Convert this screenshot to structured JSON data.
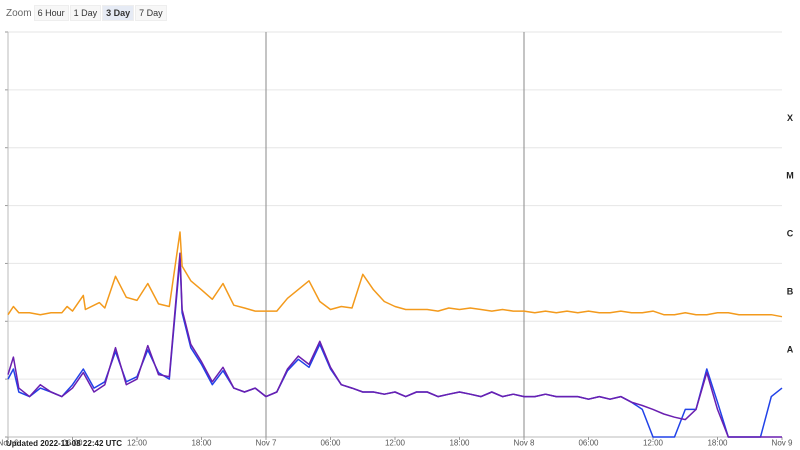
{
  "zoom": {
    "label": "Zoom",
    "buttons": [
      "6 Hour",
      "1 Day",
      "3 Day",
      "7 Day"
    ],
    "active": "3 Day"
  },
  "updated_text": "Updated 2022-11-08 22:42 UTC",
  "colors": {
    "series1": "#f39a1c",
    "series1_alt": "#e02020",
    "series2": "#6a1fb0",
    "series3": "#2142e8",
    "grid": "#e6e6e6",
    "day_line": "#8a8a8a"
  },
  "chart_data": {
    "type": "line",
    "x_range": [
      "2022-11-06 00:00",
      "2022-11-09 00:00"
    ],
    "x_ticks": [
      "Nov 6",
      "06:00",
      "12:00",
      "18:00",
      "Nov 7",
      "06:00",
      "12:00",
      "18:00",
      "Nov 8",
      "06:00",
      "12:00",
      "18:00",
      "Nov 9"
    ],
    "y_scale": "log",
    "y_range": [
      1e-09,
      0.01
    ],
    "class_labels": [
      {
        "label": "X",
        "value": 0.0001
      },
      {
        "label": "M",
        "value": 1e-05
      },
      {
        "label": "C",
        "value": 1e-06
      },
      {
        "label": "B",
        "value": 1e-07
      },
      {
        "label": "A",
        "value": 1e-08
      }
    ],
    "grid": true,
    "series": [
      {
        "points": [
          [
            0,
            1.3e-07
          ],
          [
            0.5,
            1.8e-07
          ],
          [
            1,
            1.4e-07
          ],
          [
            2,
            1.4e-07
          ],
          [
            3,
            1.3e-07
          ],
          [
            4,
            1.4e-07
          ],
          [
            5,
            1.4e-07
          ],
          [
            5.5,
            1.8e-07
          ],
          [
            6,
            1.5e-07
          ],
          [
            7,
            2.8e-07
          ],
          [
            7.2,
            1.6e-07
          ],
          [
            8.5,
            2.1e-07
          ],
          [
            9,
            1.7e-07
          ],
          [
            10,
            6e-07
          ],
          [
            11,
            2.6e-07
          ],
          [
            12,
            2.3e-07
          ],
          [
            13,
            4.5e-07
          ],
          [
            14,
            2e-07
          ],
          [
            15,
            1.8e-07
          ],
          [
            16,
            3.5e-06
          ],
          [
            16.2,
            9e-07
          ],
          [
            17,
            5e-07
          ],
          [
            18,
            3.5e-07
          ],
          [
            19,
            2.4e-07
          ],
          [
            20,
            4.5e-07
          ],
          [
            21,
            1.9e-07
          ],
          [
            22,
            1.7e-07
          ],
          [
            23,
            1.5e-07
          ],
          [
            24,
            1.5e-07
          ],
          [
            25,
            1.5e-07
          ],
          [
            26,
            2.5e-07
          ],
          [
            28,
            5e-07
          ],
          [
            29,
            2.2e-07
          ],
          [
            30,
            1.6e-07
          ],
          [
            31,
            1.8e-07
          ],
          [
            32,
            1.7e-07
          ],
          [
            33,
            6.5e-07
          ],
          [
            34,
            3.5e-07
          ],
          [
            35,
            2.2e-07
          ],
          [
            36,
            1.8e-07
          ],
          [
            37,
            1.6e-07
          ],
          [
            38,
            1.6e-07
          ],
          [
            39,
            1.6e-07
          ],
          [
            40,
            1.5e-07
          ],
          [
            41,
            1.7e-07
          ],
          [
            42,
            1.6e-07
          ],
          [
            43,
            1.7e-07
          ],
          [
            44,
            1.6e-07
          ],
          [
            45,
            1.5e-07
          ],
          [
            46,
            1.6e-07
          ],
          [
            47,
            1.5e-07
          ],
          [
            48,
            1.5e-07
          ],
          [
            49,
            1.4e-07
          ],
          [
            50,
            1.5e-07
          ],
          [
            51,
            1.4e-07
          ],
          [
            52,
            1.5e-07
          ],
          [
            53,
            1.4e-07
          ],
          [
            54,
            1.5e-07
          ],
          [
            55,
            1.4e-07
          ],
          [
            56,
            1.4e-07
          ],
          [
            57,
            1.5e-07
          ],
          [
            58,
            1.4e-07
          ],
          [
            59,
            1.4e-07
          ],
          [
            60,
            1.5e-07
          ],
          [
            61,
            1.3e-07
          ],
          [
            62,
            1.3e-07
          ],
          [
            63,
            1.4e-07
          ],
          [
            64,
            1.3e-07
          ],
          [
            65,
            1.3e-07
          ],
          [
            66,
            1.4e-07
          ],
          [
            67,
            1.4e-07
          ],
          [
            68,
            1.3e-07
          ],
          [
            69,
            1.3e-07
          ],
          [
            70,
            1.3e-07
          ],
          [
            71,
            1.3e-07
          ],
          [
            72,
            1.2e-07
          ]
        ]
      },
      {
        "points": [
          [
            0,
            1.2e-08
          ],
          [
            0.5,
            2.4e-08
          ],
          [
            1,
            7e-09
          ],
          [
            2,
            5e-09
          ],
          [
            3,
            8e-09
          ],
          [
            4,
            6e-09
          ],
          [
            5,
            5e-09
          ],
          [
            6,
            7e-09
          ],
          [
            7,
            1.3e-08
          ],
          [
            8,
            6e-09
          ],
          [
            9,
            8e-09
          ],
          [
            10,
            3.5e-08
          ],
          [
            11,
            8e-09
          ],
          [
            12,
            1e-08
          ],
          [
            13,
            3.8e-08
          ],
          [
            14,
            1.2e-08
          ],
          [
            15,
            1.1e-08
          ],
          [
            16,
            1.5e-06
          ],
          [
            16.2,
            1.6e-07
          ],
          [
            17,
            4e-08
          ],
          [
            18,
            2e-08
          ],
          [
            19,
            9e-09
          ],
          [
            20,
            1.6e-08
          ],
          [
            21,
            7e-09
          ],
          [
            22,
            6e-09
          ],
          [
            23,
            7e-09
          ],
          [
            24,
            5e-09
          ],
          [
            25,
            6e-09
          ],
          [
            26,
            1.5e-08
          ],
          [
            27,
            2.5e-08
          ],
          [
            28,
            1.8e-08
          ],
          [
            29,
            4.5e-08
          ],
          [
            30,
            1.6e-08
          ],
          [
            31,
            8e-09
          ],
          [
            32,
            7e-09
          ],
          [
            33,
            6e-09
          ],
          [
            34,
            6e-09
          ],
          [
            35,
            5.5e-09
          ],
          [
            36,
            6e-09
          ],
          [
            37,
            5e-09
          ],
          [
            38,
            6e-09
          ],
          [
            39,
            6e-09
          ],
          [
            40,
            5e-09
          ],
          [
            41,
            5.5e-09
          ],
          [
            42,
            6e-09
          ],
          [
            43,
            5.5e-09
          ],
          [
            44,
            5e-09
          ],
          [
            45,
            6e-09
          ],
          [
            46,
            5e-09
          ],
          [
            47,
            5.5e-09
          ],
          [
            48,
            5e-09
          ],
          [
            49,
            5e-09
          ],
          [
            50,
            5.5e-09
          ],
          [
            51,
            5e-09
          ],
          [
            52,
            5e-09
          ],
          [
            53,
            5e-09
          ],
          [
            54,
            4.5e-09
          ],
          [
            55,
            5e-09
          ],
          [
            56,
            4.5e-09
          ],
          [
            57,
            5e-09
          ],
          [
            58,
            4e-09
          ],
          [
            59,
            3.5e-09
          ],
          [
            60,
            3e-09
          ],
          [
            61,
            2.5e-09
          ],
          [
            62,
            2.2e-09
          ],
          [
            63,
            2e-09
          ],
          [
            64,
            3e-09
          ],
          [
            65,
            1.3e-08
          ],
          [
            66,
            3e-09
          ],
          [
            67,
            1e-09
          ],
          [
            68,
            1e-09
          ],
          [
            69,
            1e-09
          ],
          [
            70,
            1e-09
          ],
          [
            71,
            1e-09
          ],
          [
            72,
            1e-09
          ]
        ]
      },
      {
        "points": [
          [
            0,
            1e-08
          ],
          [
            0.5,
            1.5e-08
          ],
          [
            1,
            6e-09
          ],
          [
            2,
            5e-09
          ],
          [
            3,
            7e-09
          ],
          [
            4,
            6e-09
          ],
          [
            5,
            5e-09
          ],
          [
            6,
            8e-09
          ],
          [
            7,
            1.5e-08
          ],
          [
            8,
            7e-09
          ],
          [
            9,
            9e-09
          ],
          [
            10,
            3e-08
          ],
          [
            11,
            9e-09
          ],
          [
            12,
            1.1e-08
          ],
          [
            13,
            3.2e-08
          ],
          [
            14,
            1.3e-08
          ],
          [
            15,
            1e-08
          ],
          [
            16,
            1.2e-06
          ],
          [
            16.2,
            1.4e-07
          ],
          [
            17,
            3.5e-08
          ],
          [
            18,
            1.8e-08
          ],
          [
            19,
            8e-09
          ],
          [
            20,
            1.4e-08
          ],
          [
            21,
            7e-09
          ],
          [
            22,
            6e-09
          ],
          [
            23,
            7e-09
          ],
          [
            24,
            5e-09
          ],
          [
            25,
            6e-09
          ],
          [
            26,
            1.4e-08
          ],
          [
            27,
            2.2e-08
          ],
          [
            28,
            1.6e-08
          ],
          [
            29,
            4e-08
          ],
          [
            30,
            1.5e-08
          ],
          [
            31,
            8e-09
          ],
          [
            32,
            7e-09
          ],
          [
            33,
            6e-09
          ],
          [
            34,
            6e-09
          ],
          [
            35,
            5.5e-09
          ],
          [
            36,
            6e-09
          ],
          [
            37,
            5e-09
          ],
          [
            38,
            6e-09
          ],
          [
            39,
            6e-09
          ],
          [
            40,
            5e-09
          ],
          [
            41,
            5.5e-09
          ],
          [
            42,
            6e-09
          ],
          [
            43,
            5.5e-09
          ],
          [
            44,
            5e-09
          ],
          [
            45,
            6e-09
          ],
          [
            46,
            5e-09
          ],
          [
            47,
            5.5e-09
          ],
          [
            48,
            5e-09
          ],
          [
            49,
            5e-09
          ],
          [
            50,
            5.5e-09
          ],
          [
            51,
            5e-09
          ],
          [
            52,
            5e-09
          ],
          [
            53,
            5e-09
          ],
          [
            54,
            4.5e-09
          ],
          [
            55,
            5e-09
          ],
          [
            56,
            4.5e-09
          ],
          [
            57,
            5e-09
          ],
          [
            58,
            4e-09
          ],
          [
            59,
            3e-09
          ],
          [
            60,
            1e-09
          ],
          [
            61,
            1e-09
          ],
          [
            62,
            1e-09
          ],
          [
            63,
            3e-09
          ],
          [
            64,
            3e-09
          ],
          [
            65,
            1.5e-08
          ],
          [
            66,
            4e-09
          ],
          [
            67,
            1e-09
          ],
          [
            68,
            1e-09
          ],
          [
            69,
            1e-09
          ],
          [
            70,
            1e-09
          ],
          [
            71,
            5e-09
          ],
          [
            72,
            7e-09
          ]
        ]
      }
    ]
  }
}
